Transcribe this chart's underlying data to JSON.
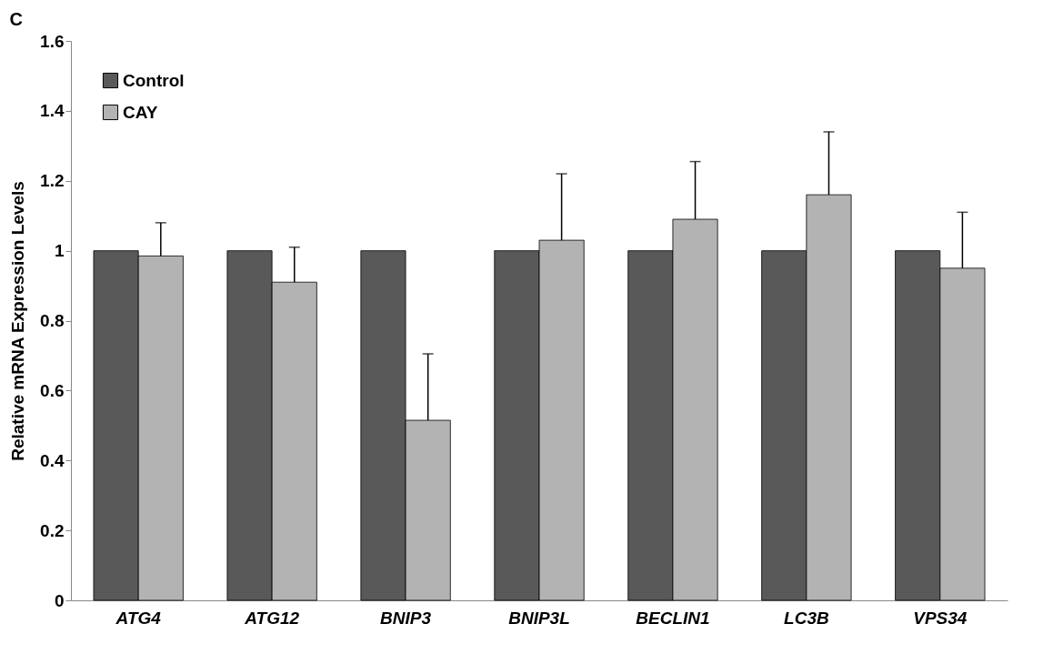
{
  "chart_data": {
    "type": "bar",
    "ylabel": "Relative mRNA Expression Levels",
    "annotations": [
      "C"
    ],
    "categories": [
      "ATG4",
      "ATG12",
      "BNIP3",
      "BNIP3L",
      "BECLIN1",
      "LC3B",
      "VPS34"
    ],
    "series": [
      {
        "name": "Control",
        "color": "#595959",
        "values": [
          1,
          1,
          1,
          1,
          1,
          1,
          1
        ]
      },
      {
        "name": "CAY",
        "color": "#b3b3b3",
        "values": [
          0.985,
          0.91,
          0.515,
          1.03,
          1.09,
          1.16,
          0.95
        ],
        "errors": [
          [
            0.985,
            1.08
          ],
          [
            0.91,
            1.01
          ],
          [
            0.515,
            0.705
          ],
          [
            1.03,
            1.22
          ],
          [
            1.09,
            1.255
          ],
          [
            1.16,
            1.34
          ],
          [
            0.95,
            1.11
          ]
        ]
      }
    ],
    "ylim": [
      0,
      1.6
    ],
    "yticks": [
      0,
      0.2,
      0.4,
      0.6,
      0.8,
      1,
      1.2,
      1.4,
      1.6
    ],
    "grid": false,
    "legend": "top left"
  }
}
